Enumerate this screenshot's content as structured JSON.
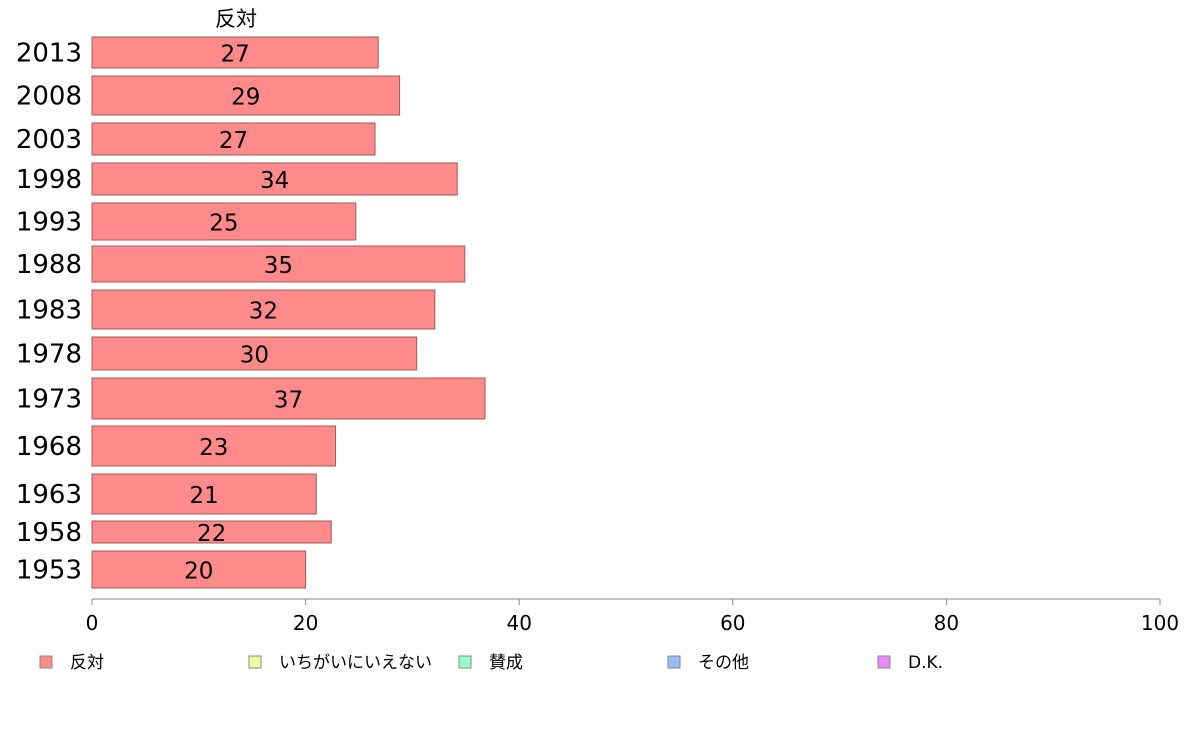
{
  "chart_data": {
    "type": "bar",
    "orientation": "horizontal",
    "series_header": "反対",
    "categories": [
      "2013",
      "2008",
      "2003",
      "1998",
      "1993",
      "1988",
      "1983",
      "1978",
      "1973",
      "1968",
      "1963",
      "1958",
      "1953"
    ],
    "series": [
      {
        "name": "反対",
        "color": "#ff8a8a",
        "values": [
          26.8,
          28.8,
          26.5,
          34.2,
          24.7,
          34.9,
          32.1,
          30.4,
          36.8,
          22.8,
          21.0,
          22.4,
          20.0
        ],
        "labels": [
          "27",
          "29",
          "27",
          "34",
          "25",
          "35",
          "32",
          "30",
          "37",
          "23",
          "21",
          "22",
          "20"
        ]
      }
    ],
    "xlim": [
      0,
      100
    ],
    "xticks": [
      "0",
      "20",
      "40",
      "60",
      "80",
      "100"
    ],
    "grid": false,
    "legend_position": "bottom",
    "legend": [
      {
        "label": "反対",
        "color": "#ff8a8a"
      },
      {
        "label": "いちがいにいえない",
        "color": "#eeff99"
      },
      {
        "label": "賛成",
        "color": "#99ffcc"
      },
      {
        "label": "その他",
        "color": "#99bbff"
      },
      {
        "label": "D.K.",
        "color": "#ee88ff"
      }
    ]
  }
}
